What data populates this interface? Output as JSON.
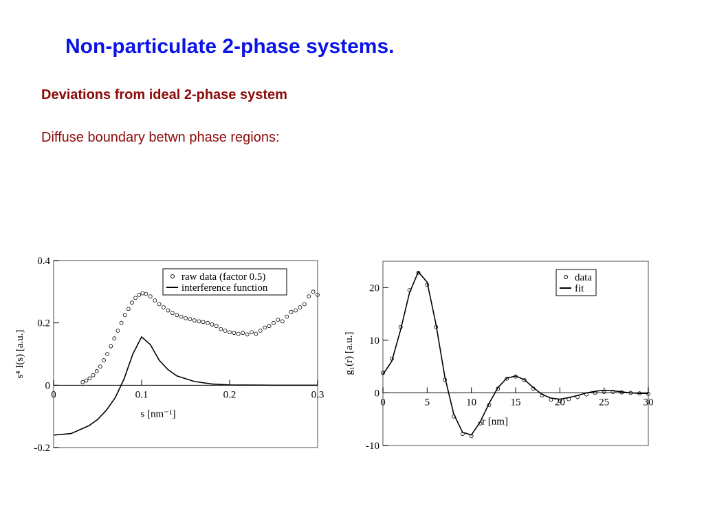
{
  "slide": {
    "title": "Non-particulate 2-phase systems.",
    "heading": "Deviations from ideal 2-phase system",
    "text": "Diffuse boundary betwn phase regions:"
  },
  "chart_data": [
    {
      "type": "line",
      "xlabel": "s  [nm⁻¹]",
      "ylabel": "s⁴ I(s)  [a.u.]",
      "xlim": [
        0,
        0.3
      ],
      "ylim": [
        -0.2,
        0.4
      ],
      "xticks": [
        0,
        0.1,
        0.2,
        0.3
      ],
      "yticks": [
        -0.2,
        0,
        0.2,
        0.4
      ],
      "legend": "top-right",
      "series": [
        {
          "name": "raw data (factor 0.5)",
          "color": "#000000",
          "marker": "circle",
          "x": [
            0.033,
            0.037,
            0.041,
            0.045,
            0.049,
            0.053,
            0.057,
            0.061,
            0.065,
            0.069,
            0.073,
            0.077,
            0.081,
            0.085,
            0.089,
            0.093,
            0.097,
            0.101,
            0.105,
            0.11,
            0.115,
            0.12,
            0.125,
            0.13,
            0.135,
            0.14,
            0.145,
            0.15,
            0.155,
            0.16,
            0.165,
            0.17,
            0.175,
            0.18,
            0.185,
            0.19,
            0.195,
            0.2,
            0.205,
            0.21,
            0.215,
            0.22,
            0.225,
            0.23,
            0.235,
            0.24,
            0.245,
            0.25,
            0.255,
            0.26,
            0.265,
            0.27,
            0.275,
            0.28,
            0.285,
            0.29,
            0.295,
            0.3
          ],
          "values": [
            0.01,
            0.015,
            0.022,
            0.032,
            0.045,
            0.06,
            0.08,
            0.1,
            0.125,
            0.15,
            0.175,
            0.2,
            0.225,
            0.245,
            0.265,
            0.28,
            0.29,
            0.295,
            0.293,
            0.285,
            0.272,
            0.26,
            0.25,
            0.24,
            0.232,
            0.225,
            0.22,
            0.215,
            0.212,
            0.208,
            0.205,
            0.203,
            0.2,
            0.195,
            0.19,
            0.18,
            0.175,
            0.17,
            0.168,
            0.165,
            0.168,
            0.163,
            0.17,
            0.165,
            0.175,
            0.185,
            0.19,
            0.2,
            0.21,
            0.205,
            0.22,
            0.235,
            0.24,
            0.25,
            0.26,
            0.285,
            0.3,
            0.29
          ]
        },
        {
          "name": "interference function",
          "color": "#000000",
          "marker": "line",
          "x": [
            0,
            0.02,
            0.04,
            0.05,
            0.06,
            0.07,
            0.08,
            0.09,
            0.1,
            0.11,
            0.12,
            0.13,
            0.14,
            0.16,
            0.18,
            0.2,
            0.25,
            0.3
          ],
          "values": [
            -0.16,
            -0.155,
            -0.13,
            -0.11,
            -0.08,
            -0.04,
            0.02,
            0.1,
            0.155,
            0.13,
            0.08,
            0.05,
            0.03,
            0.012,
            0.004,
            0.001,
            0,
            0
          ]
        }
      ]
    },
    {
      "type": "line",
      "xlabel": "r  [nm]",
      "ylabel": "g₁(r)  [a.u.]",
      "xlim": [
        0,
        30
      ],
      "ylim": [
        -10,
        25
      ],
      "xticks": [
        0,
        5,
        10,
        15,
        20,
        25,
        30
      ],
      "yticks": [
        -10,
        0,
        10,
        20
      ],
      "legend": "top-right",
      "series": [
        {
          "name": "data",
          "color": "#000000",
          "marker": "circle",
          "x": [
            0,
            1,
            2,
            3,
            4,
            5,
            6,
            7,
            8,
            9,
            10,
            11,
            12,
            13,
            14,
            15,
            16,
            17,
            18,
            19,
            20,
            21,
            22,
            23,
            24,
            25,
            26,
            27,
            28,
            29,
            30
          ],
          "values": [
            3.8,
            6.5,
            12.5,
            19.5,
            22.8,
            20.5,
            12.5,
            2.5,
            -4.5,
            -7.8,
            -8.2,
            -5.8,
            -2.3,
            0.8,
            2.7,
            3.1,
            2.4,
            0.8,
            -0.5,
            -1.3,
            -1.5,
            -1.2,
            -0.8,
            -0.3,
            0,
            0.2,
            0.2,
            0.1,
            0,
            -0.1,
            -0.2
          ]
        },
        {
          "name": "fit",
          "color": "#000000",
          "marker": "line",
          "x": [
            0,
            1,
            2,
            3,
            4,
            5,
            6,
            7,
            8,
            9,
            10,
            11,
            12,
            13,
            14,
            15,
            16,
            17,
            18,
            19,
            20,
            21,
            22,
            23,
            24,
            25,
            26,
            27,
            28,
            29,
            30
          ],
          "values": [
            3.5,
            6,
            12,
            19,
            23,
            21,
            13,
            3,
            -4,
            -7.5,
            -8,
            -5.5,
            -2,
            1,
            2.8,
            3.2,
            2.5,
            1,
            -0.3,
            -1,
            -1.2,
            -0.9,
            -0.5,
            0,
            0.3,
            0.5,
            0.4,
            0.2,
            0,
            -0.1,
            -0.1
          ]
        }
      ]
    }
  ]
}
